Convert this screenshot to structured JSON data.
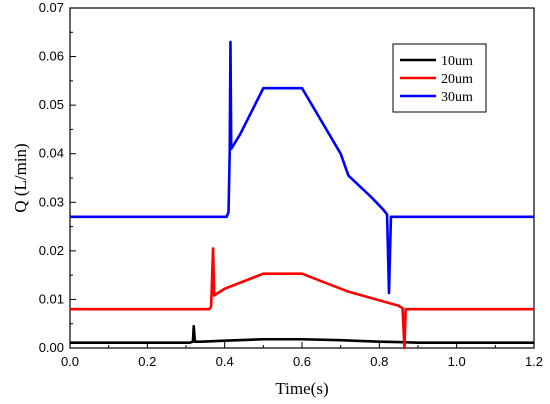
{
  "chart_data": {
    "type": "line",
    "xlabel": "Time(s)",
    "ylabel": "Q (L/min)",
    "xlim": [
      0.0,
      1.2
    ],
    "ylim": [
      0.0,
      0.07
    ],
    "x_ticks": [
      "0.0",
      "0.2",
      "0.4",
      "0.6",
      "0.8",
      "1.0",
      "1.2"
    ],
    "y_ticks": [
      "0.00",
      "0.01",
      "0.02",
      "0.03",
      "0.04",
      "0.05",
      "0.06",
      "0.07"
    ],
    "grid": false,
    "legend_position": "top-right",
    "series": [
      {
        "name": "10um",
        "color": "#000000",
        "points": [
          [
            0.0,
            0.0011
          ],
          [
            0.31,
            0.0011
          ],
          [
            0.318,
            0.0013
          ],
          [
            0.32,
            0.0045
          ],
          [
            0.323,
            0.0013
          ],
          [
            0.34,
            0.0013
          ],
          [
            0.4,
            0.0015
          ],
          [
            0.5,
            0.0018
          ],
          [
            0.6,
            0.0018
          ],
          [
            0.7,
            0.0016
          ],
          [
            0.8,
            0.0013
          ],
          [
            0.86,
            0.0012
          ],
          [
            0.9,
            0.0011
          ],
          [
            1.2,
            0.0011
          ]
        ]
      },
      {
        "name": "20um",
        "color": "#ff0000",
        "points": [
          [
            0.0,
            0.008
          ],
          [
            0.36,
            0.008
          ],
          [
            0.365,
            0.0085
          ],
          [
            0.37,
            0.0205
          ],
          [
            0.373,
            0.0108
          ],
          [
            0.38,
            0.0112
          ],
          [
            0.4,
            0.0122
          ],
          [
            0.5,
            0.0153
          ],
          [
            0.6,
            0.0153
          ],
          [
            0.72,
            0.0116
          ],
          [
            0.85,
            0.0087
          ],
          [
            0.86,
            0.0082
          ],
          [
            0.865,
            0.0
          ],
          [
            0.868,
            0.008
          ],
          [
            1.2,
            0.008
          ]
        ]
      },
      {
        "name": "30um",
        "color": "#0000ff",
        "points": [
          [
            0.0,
            0.027
          ],
          [
            0.405,
            0.027
          ],
          [
            0.41,
            0.028
          ],
          [
            0.413,
            0.04
          ],
          [
            0.415,
            0.063
          ],
          [
            0.417,
            0.041
          ],
          [
            0.44,
            0.044
          ],
          [
            0.5,
            0.0535
          ],
          [
            0.6,
            0.0535
          ],
          [
            0.7,
            0.04
          ],
          [
            0.72,
            0.0355
          ],
          [
            0.78,
            0.031
          ],
          [
            0.81,
            0.0285
          ],
          [
            0.82,
            0.0275
          ],
          [
            0.825,
            0.0113
          ],
          [
            0.83,
            0.027
          ],
          [
            1.2,
            0.027
          ]
        ]
      }
    ]
  }
}
